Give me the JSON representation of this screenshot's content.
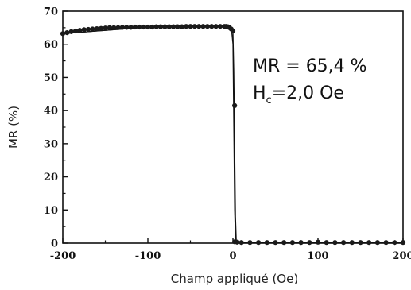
{
  "chart_data": {
    "type": "scatter",
    "xlabel": "Champ appliqué (Oe)",
    "ylabel": "MR (%)",
    "xlim": [
      -200,
      200
    ],
    "ylim": [
      0,
      70
    ],
    "xticks": [
      -200,
      -100,
      0,
      100,
      200
    ],
    "yticks": [
      0,
      10,
      20,
      30,
      40,
      50,
      60,
      70
    ],
    "xtick_labels": [
      "-200",
      "-100",
      "0",
      "100",
      "200"
    ],
    "ytick_labels": [
      "0",
      "10",
      "20",
      "30",
      "40",
      "50",
      "60",
      "70"
    ],
    "grid": false,
    "annotations": {
      "mr": "MR = 65,4 %",
      "hc_main": "H",
      "hc_sub": "c",
      "hc_rest": "=2,0 Oe"
    },
    "series": [
      {
        "x": [
          -200,
          -195,
          -190,
          -185,
          -180,
          -175,
          -170,
          -165,
          -160,
          -155,
          -150,
          -145,
          -140,
          -135,
          -130,
          -125,
          -120,
          -115,
          -110,
          -105,
          -100,
          -95,
          -90,
          -85,
          -80,
          -75,
          -70,
          -65,
          -60,
          -55,
          -50,
          -45,
          -40,
          -35,
          -30,
          -25,
          -20,
          -15,
          -10,
          -8,
          -6,
          -4,
          -2,
          0
        ],
        "y": [
          63.2,
          63.5,
          63.8,
          64.0,
          64.2,
          64.4,
          64.5,
          64.6,
          64.7,
          64.8,
          64.9,
          65.0,
          65.0,
          65.0,
          65.1,
          65.1,
          65.1,
          65.2,
          65.2,
          65.2,
          65.2,
          65.2,
          65.3,
          65.3,
          65.3,
          65.3,
          65.3,
          65.3,
          65.3,
          65.4,
          65.4,
          65.4,
          65.4,
          65.4,
          65.4,
          65.4,
          65.4,
          65.4,
          65.4,
          65.4,
          65.3,
          65.0,
          64.6,
          64.0
        ]
      },
      {
        "x": [
          0,
          2
        ],
        "y": [
          64.0,
          41.5
        ]
      },
      {
        "x": [
          2,
          5,
          10,
          20,
          30,
          40,
          50,
          60,
          70,
          80,
          90,
          100,
          110,
          120,
          130,
          140,
          150,
          160,
          170,
          180,
          190,
          200
        ],
        "y": [
          0.4,
          0.3,
          0.2,
          0.2,
          0.2,
          0.2,
          0.2,
          0.2,
          0.2,
          0.2,
          0.2,
          0.3,
          0.2,
          0.2,
          0.2,
          0.2,
          0.2,
          0.2,
          0.2,
          0.2,
          0.2,
          0.2
        ]
      }
    ],
    "hysteresis_curve": {
      "forward_x": [
        -200,
        -100,
        -20,
        -8,
        -4,
        0,
        1,
        2,
        3,
        4,
        200
      ],
      "forward_y": [
        63.2,
        65.2,
        65.4,
        65.4,
        65.0,
        64.0,
        52,
        30,
        8,
        0.3,
        0.2
      ],
      "reverse_x": [
        200,
        100,
        10,
        4,
        3,
        2,
        1,
        0,
        -2,
        -10,
        -100,
        -200
      ],
      "reverse_y": [
        0.2,
        0.2,
        0.2,
        0.3,
        0.5,
        10,
        35,
        60,
        65.2,
        65.4,
        65.2,
        63.2
      ]
    }
  }
}
